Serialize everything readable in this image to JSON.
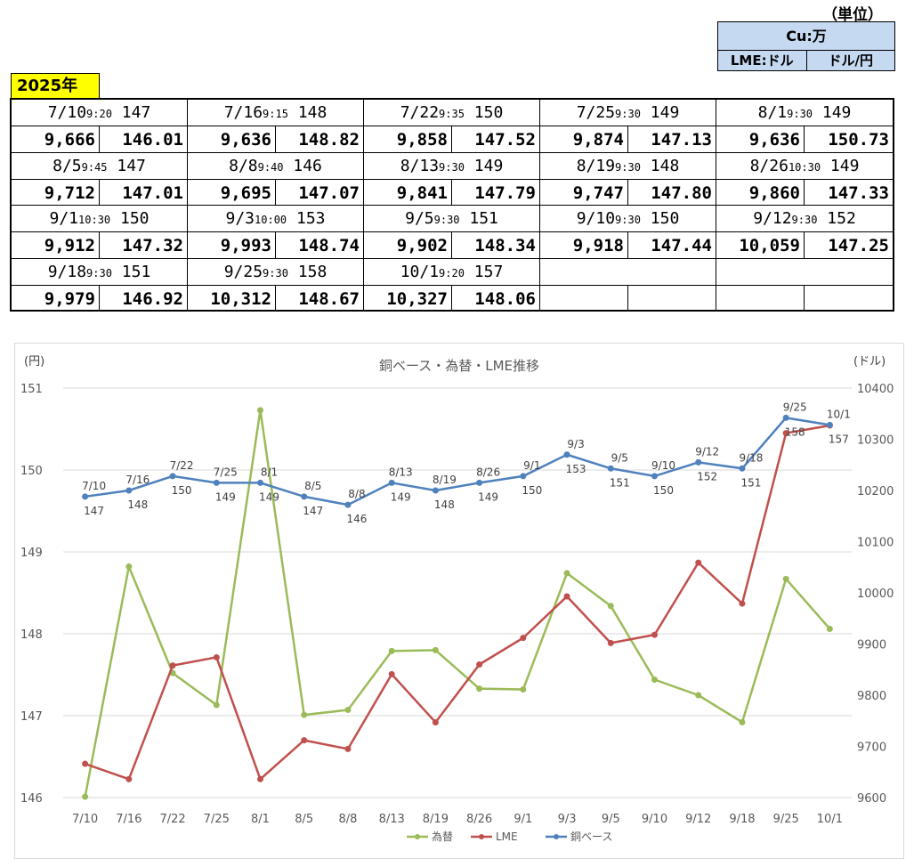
{
  "header": {
    "unit_label": "（単位）",
    "cu_label": "Cu:万",
    "lme_unit": "LME:ドル",
    "fx_unit": "ドル/円",
    "year": "2025年"
  },
  "rows": [
    [
      {
        "date": "7/10",
        "time": "9:20",
        "base": "147",
        "lme": "9,666",
        "fx": "146.01"
      },
      {
        "date": "7/16",
        "time": "9:15",
        "base": "148",
        "lme": "9,636",
        "fx": "148.82"
      },
      {
        "date": "7/22",
        "time": "9:35",
        "base": "150",
        "lme": "9,858",
        "fx": "147.52"
      },
      {
        "date": "7/25",
        "time": "9:30",
        "base": "149",
        "lme": "9,874",
        "fx": "147.13"
      },
      {
        "date": "8/1",
        "time": "9:30",
        "base": "149",
        "lme": "9,636",
        "fx": "150.73"
      }
    ],
    [
      {
        "date": "8/5",
        "time": "9:45",
        "base": "147",
        "lme": "9,712",
        "fx": "147.01"
      },
      {
        "date": "8/8",
        "time": "9:40",
        "base": "146",
        "lme": "9,695",
        "fx": "147.07"
      },
      {
        "date": "8/13",
        "time": "9:30",
        "base": "149",
        "lme": "9,841",
        "fx": "147.79"
      },
      {
        "date": "8/19",
        "time": "9:30",
        "base": "148",
        "lme": "9,747",
        "fx": "147.80"
      },
      {
        "date": "8/26",
        "time": "10:30",
        "base": "149",
        "lme": "9,860",
        "fx": "147.33"
      }
    ],
    [
      {
        "date": "9/1",
        "time": "10:30",
        "base": "150",
        "lme": "9,912",
        "fx": "147.32"
      },
      {
        "date": "9/3",
        "time": "10:00",
        "base": "153",
        "lme": "9,993",
        "fx": "148.74"
      },
      {
        "date": "9/5",
        "time": "9:30",
        "base": "151",
        "lme": "9,902",
        "fx": "148.34"
      },
      {
        "date": "9/10",
        "time": "9:30",
        "base": "150",
        "lme": "9,918",
        "fx": "147.44"
      },
      {
        "date": "9/12",
        "time": "9:30",
        "base": "152",
        "lme": "10,059",
        "fx": "147.25"
      }
    ],
    [
      {
        "date": "9/18",
        "time": "9:30",
        "base": "151",
        "lme": "9,979",
        "fx": "146.92"
      },
      {
        "date": "9/25",
        "time": "9:30",
        "base": "158",
        "lme": "10,312",
        "fx": "148.67"
      },
      {
        "date": "10/1",
        "time": "9:20",
        "base": "157",
        "lme": "10,327",
        "fx": "148.06"
      },
      {
        "date": "",
        "time": "",
        "base": "",
        "lme": "",
        "fx": ""
      },
      {
        "date": "",
        "time": "",
        "base": "",
        "lme": "",
        "fx": ""
      }
    ]
  ],
  "chart_data": {
    "type": "line",
    "title": "銅ベース・為替・LME推移",
    "ylabel_left": "(円)",
    "ylabel_right": "(ドル)",
    "categories": [
      "7/10",
      "7/16",
      "7/22",
      "7/25",
      "8/1",
      "8/5",
      "8/8",
      "8/13",
      "8/19",
      "8/26",
      "9/1",
      "9/3",
      "9/5",
      "9/10",
      "9/12",
      "9/18",
      "9/25",
      "10/1"
    ],
    "ylim_left": [
      146,
      151
    ],
    "left_ticks": [
      "146",
      "147",
      "148",
      "149",
      "150",
      "151"
    ],
    "ylim_right": [
      9600,
      10400
    ],
    "right_ticks": [
      "9600",
      "9700",
      "9800",
      "9900",
      "10000",
      "10100",
      "10200",
      "10300",
      "10400"
    ],
    "legend_position": "bottom",
    "series": [
      {
        "name": "為替",
        "axis": "left",
        "color": "#9bbb59",
        "values": [
          146.01,
          148.82,
          147.52,
          147.13,
          150.73,
          147.01,
          147.07,
          147.79,
          147.8,
          147.33,
          147.32,
          148.74,
          148.34,
          147.44,
          147.25,
          146.92,
          148.67,
          148.06
        ]
      },
      {
        "name": "LME",
        "axis": "right",
        "color": "#c0504d",
        "values": [
          9666,
          9636,
          9858,
          9874,
          9636,
          9712,
          9695,
          9841,
          9747,
          9860,
          9912,
          9993,
          9902,
          9918,
          10059,
          9979,
          10312,
          10327
        ]
      },
      {
        "name": "銅ベース",
        "axis": "right",
        "color": "#4f81bd",
        "values": [
          10188,
          10200,
          10228,
          10215,
          10215,
          10188,
          10172,
          10215,
          10200,
          10215,
          10228,
          10270,
          10243,
          10228,
          10255,
          10243,
          10342,
          10328
        ],
        "labels": [
          "147",
          "148",
          "150",
          "149",
          "149",
          "147",
          "146",
          "149",
          "148",
          "149",
          "150",
          "153",
          "151",
          "150",
          "152",
          "151",
          "158",
          "157"
        ]
      }
    ]
  }
}
